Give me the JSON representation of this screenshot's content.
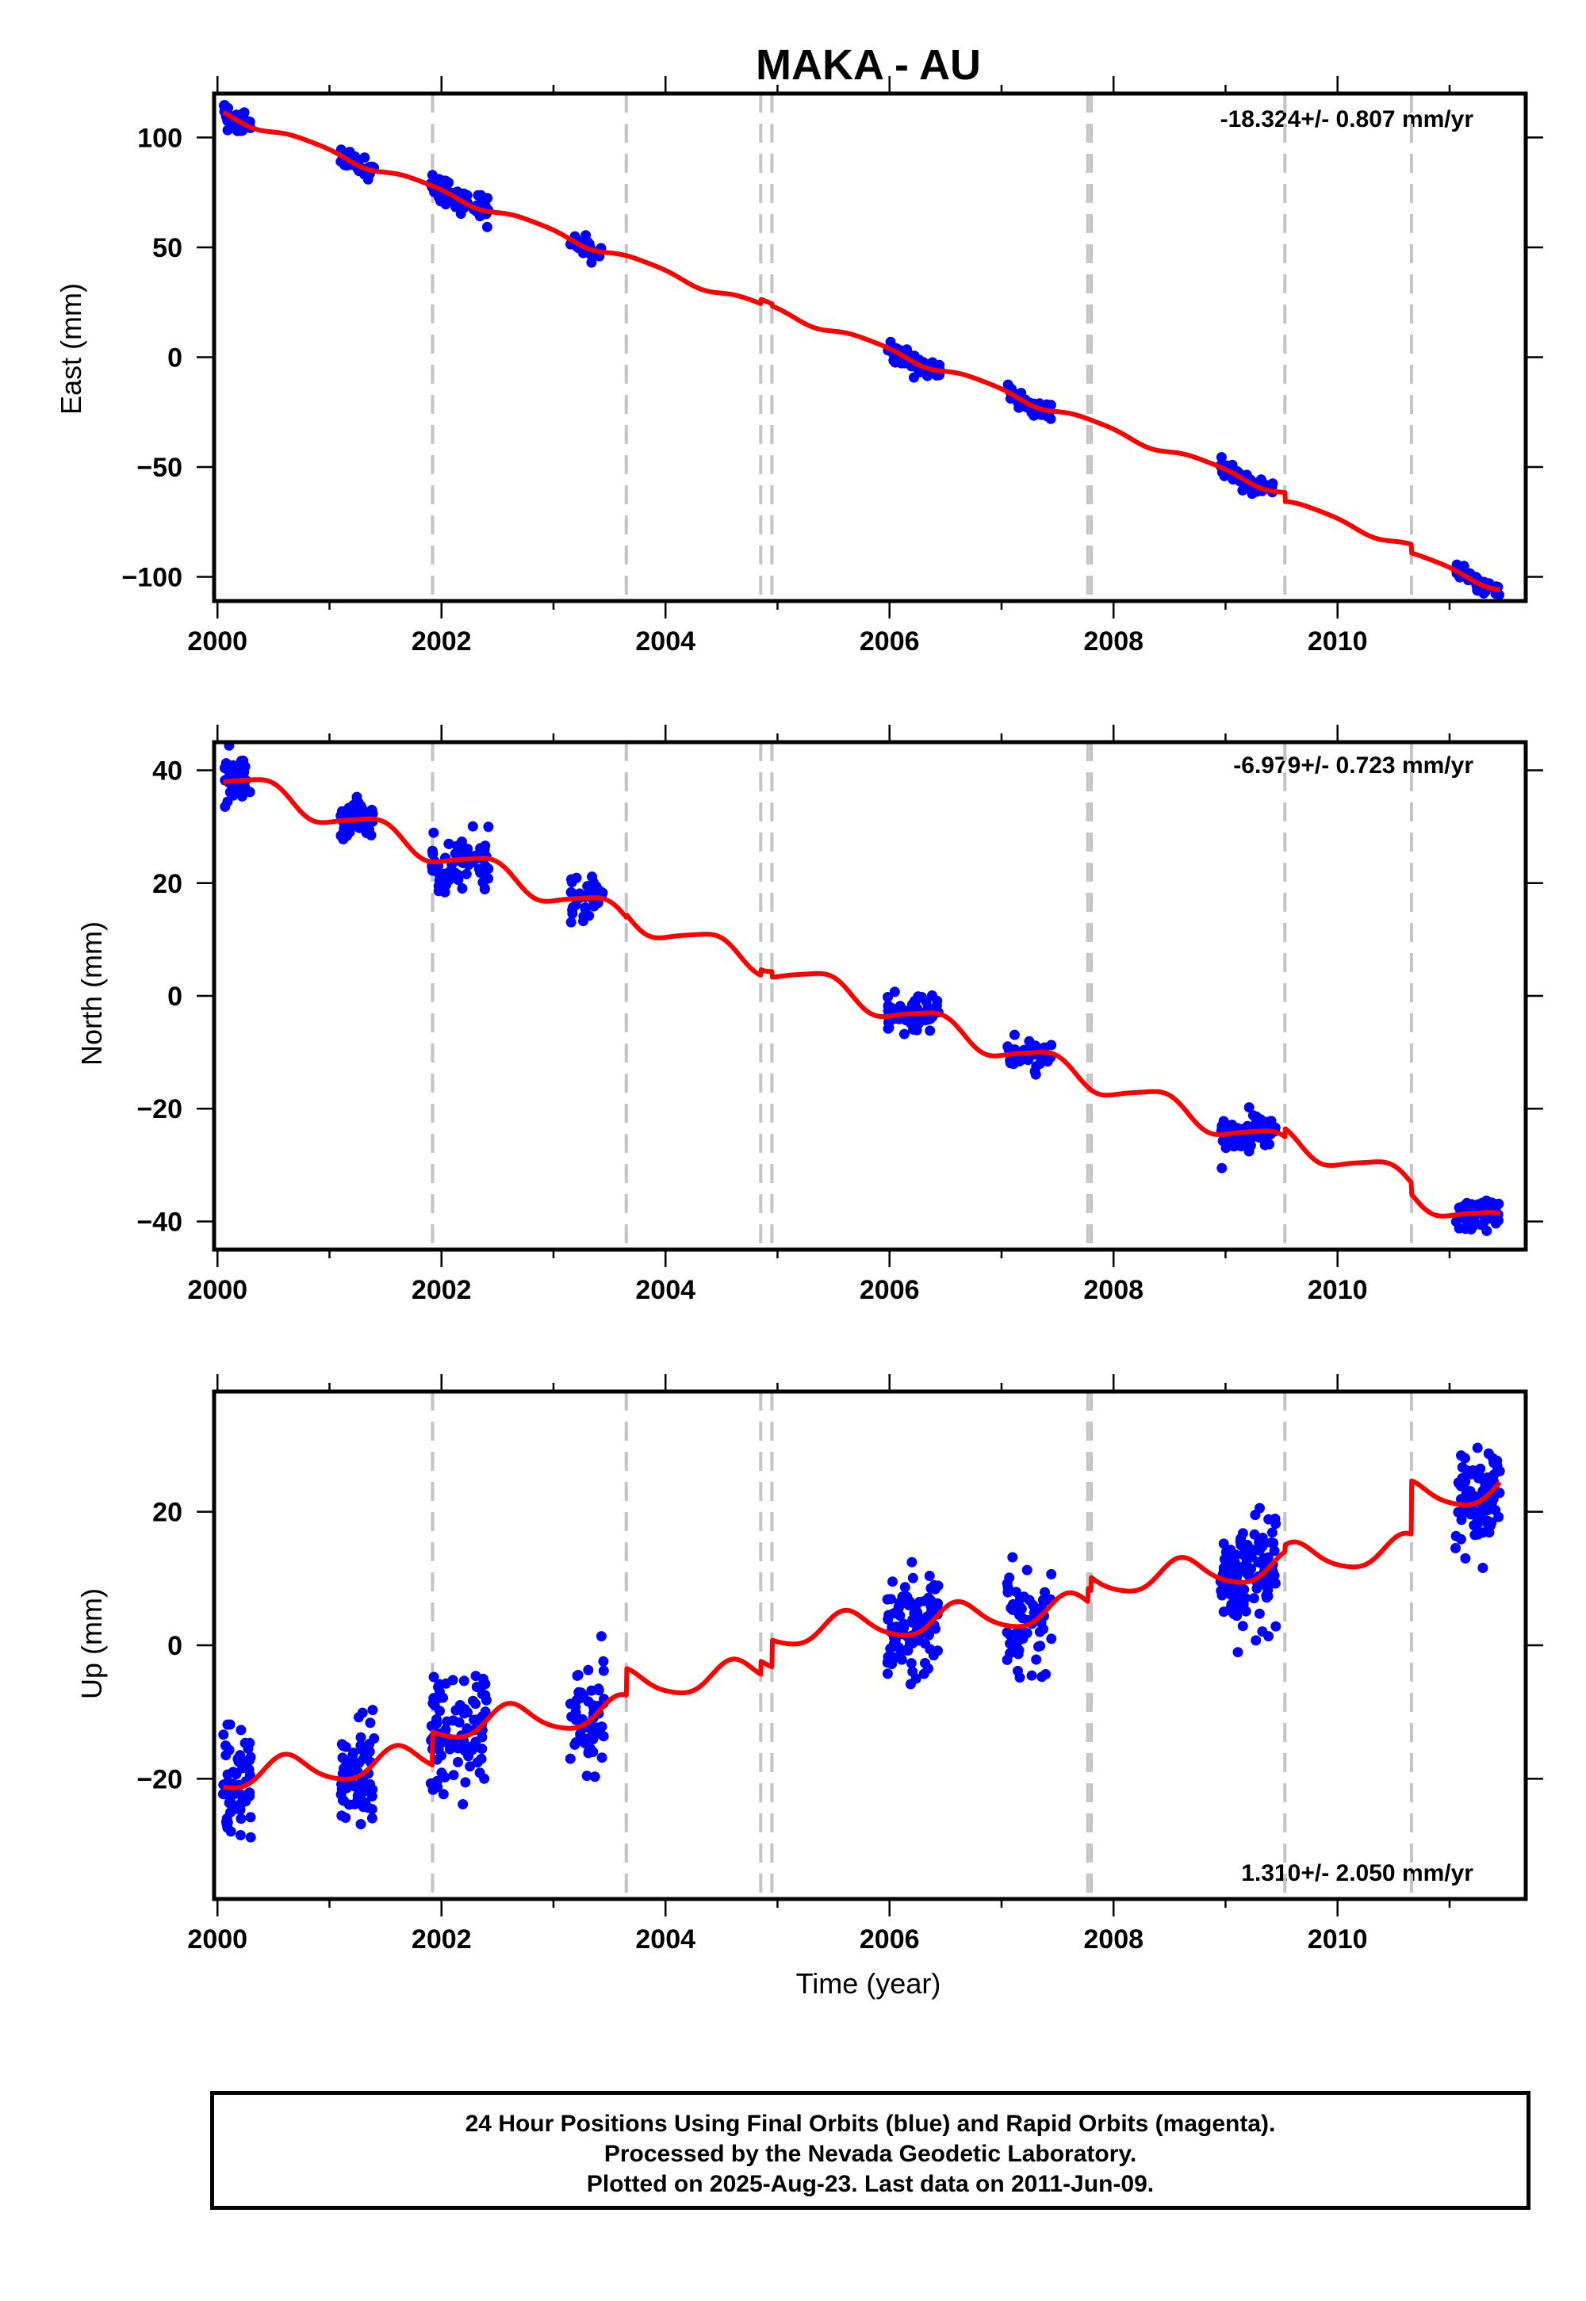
{
  "title": "MAKA - AU",
  "colors": {
    "final": "#0000ff",
    "rapid": "#ff00ff",
    "model": "#ff0000",
    "steps": "#c4c4c4"
  },
  "chart_data": [
    {
      "type": "scatter",
      "name": "east",
      "ylabel": "East (mm)",
      "xlim": [
        1999.97,
        2011.68
      ],
      "ylim": [
        -111,
        120
      ],
      "yticks": [
        -100,
        -50,
        0,
        50,
        100
      ],
      "xticks": [
        2000,
        2002,
        2004,
        2006,
        2008,
        2010
      ],
      "rate_text": "-18.324+/- 0.807 mm/yr",
      "rate_pos": "top-right",
      "steps": [
        2001.92,
        2003.65,
        2004.85,
        2004.95,
        2007.77,
        2007.8,
        2009.53,
        2010.66
      ],
      "trend": {
        "rate": -18.324,
        "origin_year": 2000.1,
        "origin_value": 110.2,
        "annual": [
          -1.5,
          0.6
        ],
        "semiannual": [
          0.3,
          0.2
        ]
      },
      "offsets": [
        {
          "t": 2001.92,
          "d": 0
        },
        {
          "t": 2003.65,
          "d": 0
        },
        {
          "t": 2004.85,
          "d": 2
        },
        {
          "t": 2004.95,
          "d": -1
        },
        {
          "t": 2007.77,
          "d": 0
        },
        {
          "t": 2007.8,
          "d": 0
        },
        {
          "t": 2009.53,
          "d": -4
        },
        {
          "t": 2010.66,
          "d": -4
        }
      ],
      "clusters": [
        {
          "start": 2000.05,
          "end": 2000.3,
          "n": 40,
          "spread": 2.8,
          "seed": 11
        },
        {
          "start": 2001.1,
          "end": 2001.4,
          "n": 50,
          "spread": 2.5,
          "seed": 12
        },
        {
          "start": 2001.9,
          "end": 2002.42,
          "n": 60,
          "spread": 3.0,
          "seed": 13
        },
        {
          "start": 2003.15,
          "end": 2003.45,
          "n": 30,
          "spread": 2.0,
          "seed": 14
        },
        {
          "start": 2005.98,
          "end": 2006.45,
          "n": 60,
          "spread": 2.2,
          "seed": 15
        },
        {
          "start": 2007.05,
          "end": 2007.45,
          "n": 40,
          "spread": 2.0,
          "seed": 16
        },
        {
          "start": 2008.95,
          "end": 2009.45,
          "n": 60,
          "spread": 2.0,
          "seed": 17
        },
        {
          "start": 2011.05,
          "end": 2011.45,
          "n": 50,
          "spread": 2.0,
          "seed": 18
        }
      ]
    },
    {
      "type": "scatter",
      "name": "north",
      "ylabel": "North (mm)",
      "xlim": [
        1999.97,
        2011.68
      ],
      "ylim": [
        -45,
        45
      ],
      "yticks": [
        -40,
        -20,
        0,
        20,
        40
      ],
      "xticks": [
        2000,
        2002,
        2004,
        2006,
        2008,
        2010
      ],
      "rate_text": "-6.979+/- 0.723 mm/yr",
      "rate_pos": "top-right",
      "steps": [
        2001.92,
        2003.65,
        2004.85,
        2004.95,
        2007.77,
        2007.8,
        2009.53,
        2010.66
      ],
      "trend": {
        "rate": -6.979,
        "origin_year": 2000.1,
        "origin_value": 38.5,
        "annual": [
          1.1,
          -1.7
        ],
        "semiannual": [
          0.2,
          0.3
        ]
      },
      "offsets": [
        {
          "t": 2001.92,
          "d": 0
        },
        {
          "t": 2003.65,
          "d": 0.5
        },
        {
          "t": 2004.85,
          "d": 1
        },
        {
          "t": 2004.95,
          "d": -1
        },
        {
          "t": 2007.77,
          "d": 0
        },
        {
          "t": 2007.8,
          "d": 0
        },
        {
          "t": 2009.53,
          "d": 1.5
        },
        {
          "t": 2010.66,
          "d": -2
        }
      ],
      "clusters": [
        {
          "start": 2000.05,
          "end": 2000.3,
          "n": 45,
          "spread": 2.2,
          "seed": 21
        },
        {
          "start": 2001.1,
          "end": 2001.4,
          "n": 60,
          "spread": 1.8,
          "seed": 22
        },
        {
          "start": 2001.9,
          "end": 2002.42,
          "n": 70,
          "spread": 2.5,
          "seed": 23
        },
        {
          "start": 2003.15,
          "end": 2003.45,
          "n": 35,
          "spread": 2.5,
          "seed": 24
        },
        {
          "start": 2005.98,
          "end": 2006.45,
          "n": 70,
          "spread": 1.5,
          "seed": 25
        },
        {
          "start": 2007.05,
          "end": 2007.45,
          "n": 45,
          "spread": 1.6,
          "seed": 26
        },
        {
          "start": 2008.95,
          "end": 2009.45,
          "n": 70,
          "spread": 1.6,
          "seed": 27
        },
        {
          "start": 2011.05,
          "end": 2011.45,
          "n": 55,
          "spread": 1.4,
          "seed": 28
        }
      ]
    },
    {
      "type": "scatter",
      "name": "up",
      "ylabel": "Up (mm)",
      "xlabel": "Time (year)",
      "xlim": [
        1999.97,
        2011.68
      ],
      "ylim": [
        -38,
        38
      ],
      "yticks": [
        -20,
        0,
        20
      ],
      "xticks": [
        2000,
        2002,
        2004,
        2006,
        2008,
        2010
      ],
      "rate_text": "1.310+/- 2.050 mm/yr",
      "rate_pos": "bottom-right",
      "steps": [
        2001.92,
        2003.65,
        2004.85,
        2004.95,
        2007.77,
        2007.8,
        2009.53,
        2010.66
      ],
      "trend": {
        "rate": 1.31,
        "origin_year": 2000.1,
        "origin_value": -19.5,
        "annual": [
          -1.5,
          -1.6
        ],
        "semiannual": [
          0.3,
          0.2
        ]
      },
      "offsets": [
        {
          "t": 2001.92,
          "d": 5
        },
        {
          "t": 2003.65,
          "d": 4
        },
        {
          "t": 2004.85,
          "d": 2
        },
        {
          "t": 2004.95,
          "d": 4
        },
        {
          "t": 2007.77,
          "d": 2
        },
        {
          "t": 2007.8,
          "d": 2
        },
        {
          "t": 2009.53,
          "d": 1
        },
        {
          "t": 2010.66,
          "d": 8
        }
      ],
      "clusters": [
        {
          "start": 2000.05,
          "end": 2000.3,
          "n": 60,
          "spread": 4.5,
          "seed": 31
        },
        {
          "start": 2001.1,
          "end": 2001.4,
          "n": 80,
          "spread": 4.5,
          "seed": 32
        },
        {
          "start": 2001.9,
          "end": 2002.42,
          "n": 90,
          "spread": 4.5,
          "seed": 33
        },
        {
          "start": 2003.15,
          "end": 2003.45,
          "n": 60,
          "spread": 4.5,
          "seed": 34
        },
        {
          "start": 2005.98,
          "end": 2006.45,
          "n": 110,
          "spread": 4.0,
          "seed": 35
        },
        {
          "start": 2007.05,
          "end": 2007.45,
          "n": 60,
          "spread": 3.8,
          "seed": 36
        },
        {
          "start": 2008.95,
          "end": 2009.45,
          "n": 130,
          "spread": 4.2,
          "seed": 37
        },
        {
          "start": 2011.05,
          "end": 2011.45,
          "n": 100,
          "spread": 4.0,
          "seed": 38
        }
      ]
    }
  ],
  "footer": {
    "line1": "24 Hour Positions Using Final Orbits (blue) and Rapid Orbits (magenta).",
    "line2": "Processed by the Nevada Geodetic Laboratory.",
    "line3": "Plotted on 2025-Aug-23. Last data on 2011-Jun-09."
  }
}
